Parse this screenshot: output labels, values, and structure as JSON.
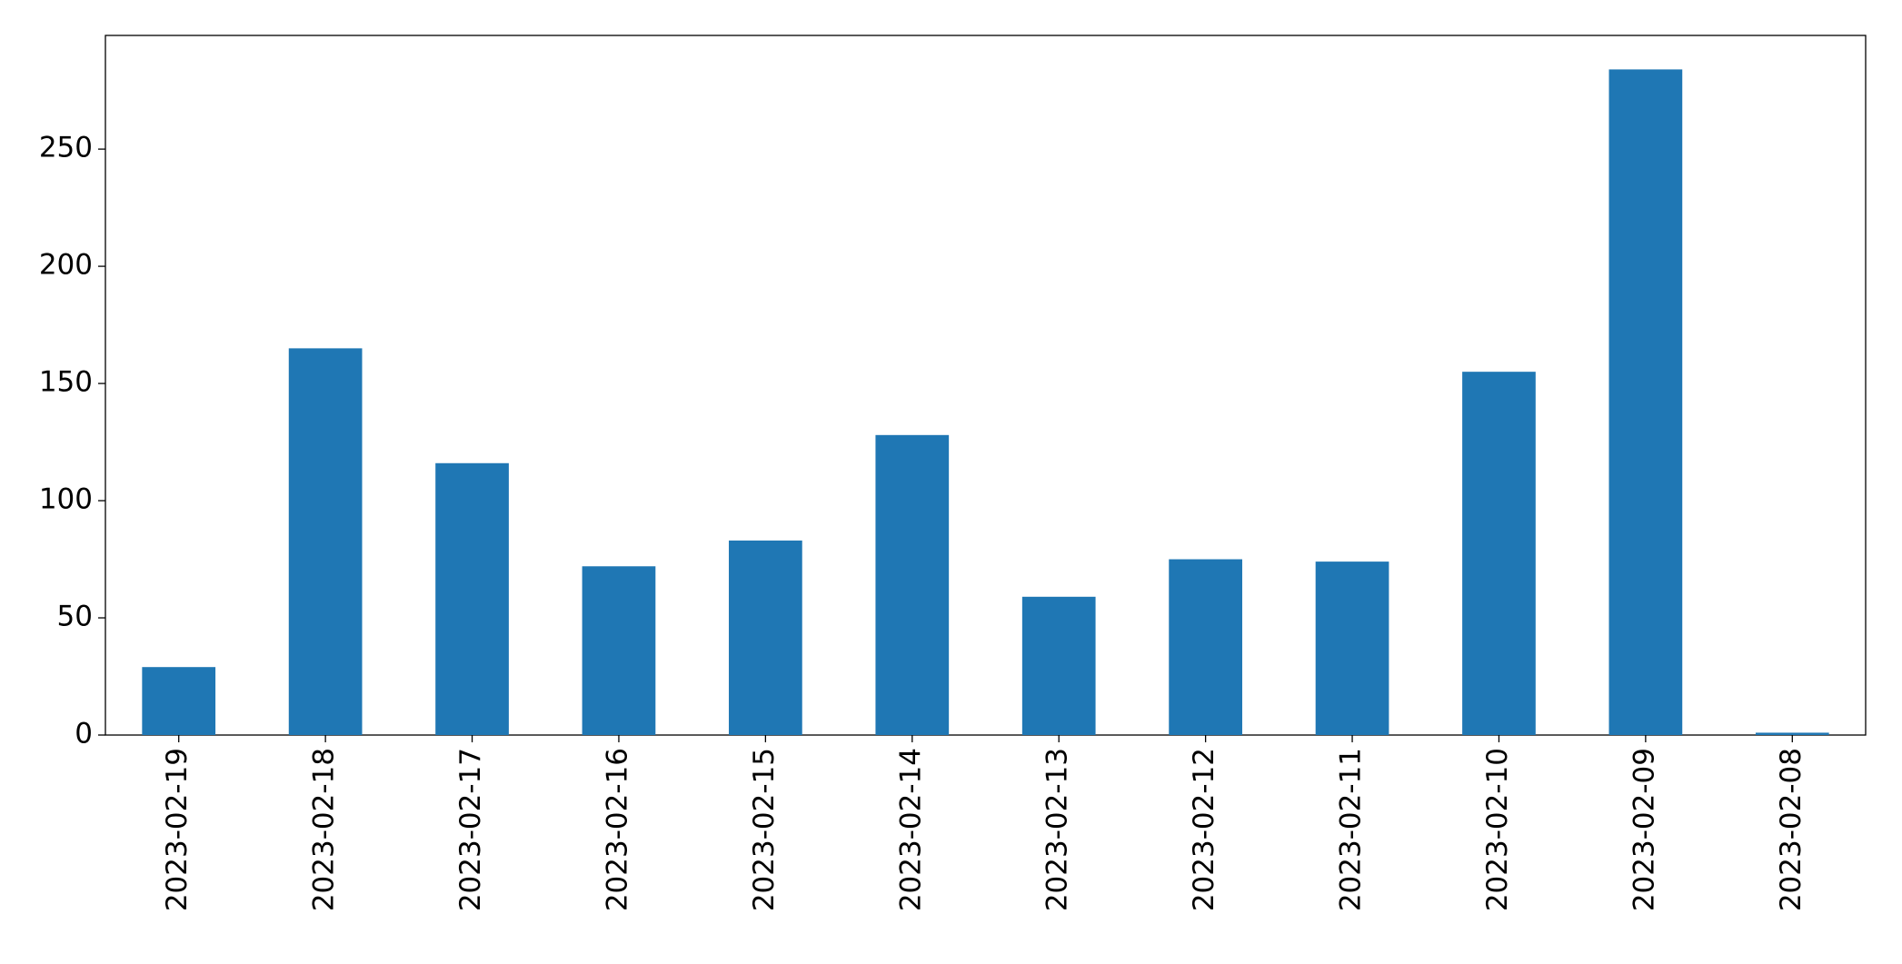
{
  "chart_data": {
    "type": "bar",
    "categories": [
      "2023-02-19",
      "2023-02-18",
      "2023-02-17",
      "2023-02-16",
      "2023-02-15",
      "2023-02-14",
      "2023-02-13",
      "2023-02-12",
      "2023-02-11",
      "2023-02-10",
      "2023-02-09",
      "2023-02-08"
    ],
    "values": [
      29,
      165,
      116,
      72,
      83,
      128,
      59,
      75,
      74,
      155,
      284,
      1
    ],
    "color": "#1f77b4",
    "ylim": [
      0,
      298.5
    ],
    "yticks": [
      0,
      50,
      100,
      150,
      200,
      250
    ],
    "grid": false
  }
}
